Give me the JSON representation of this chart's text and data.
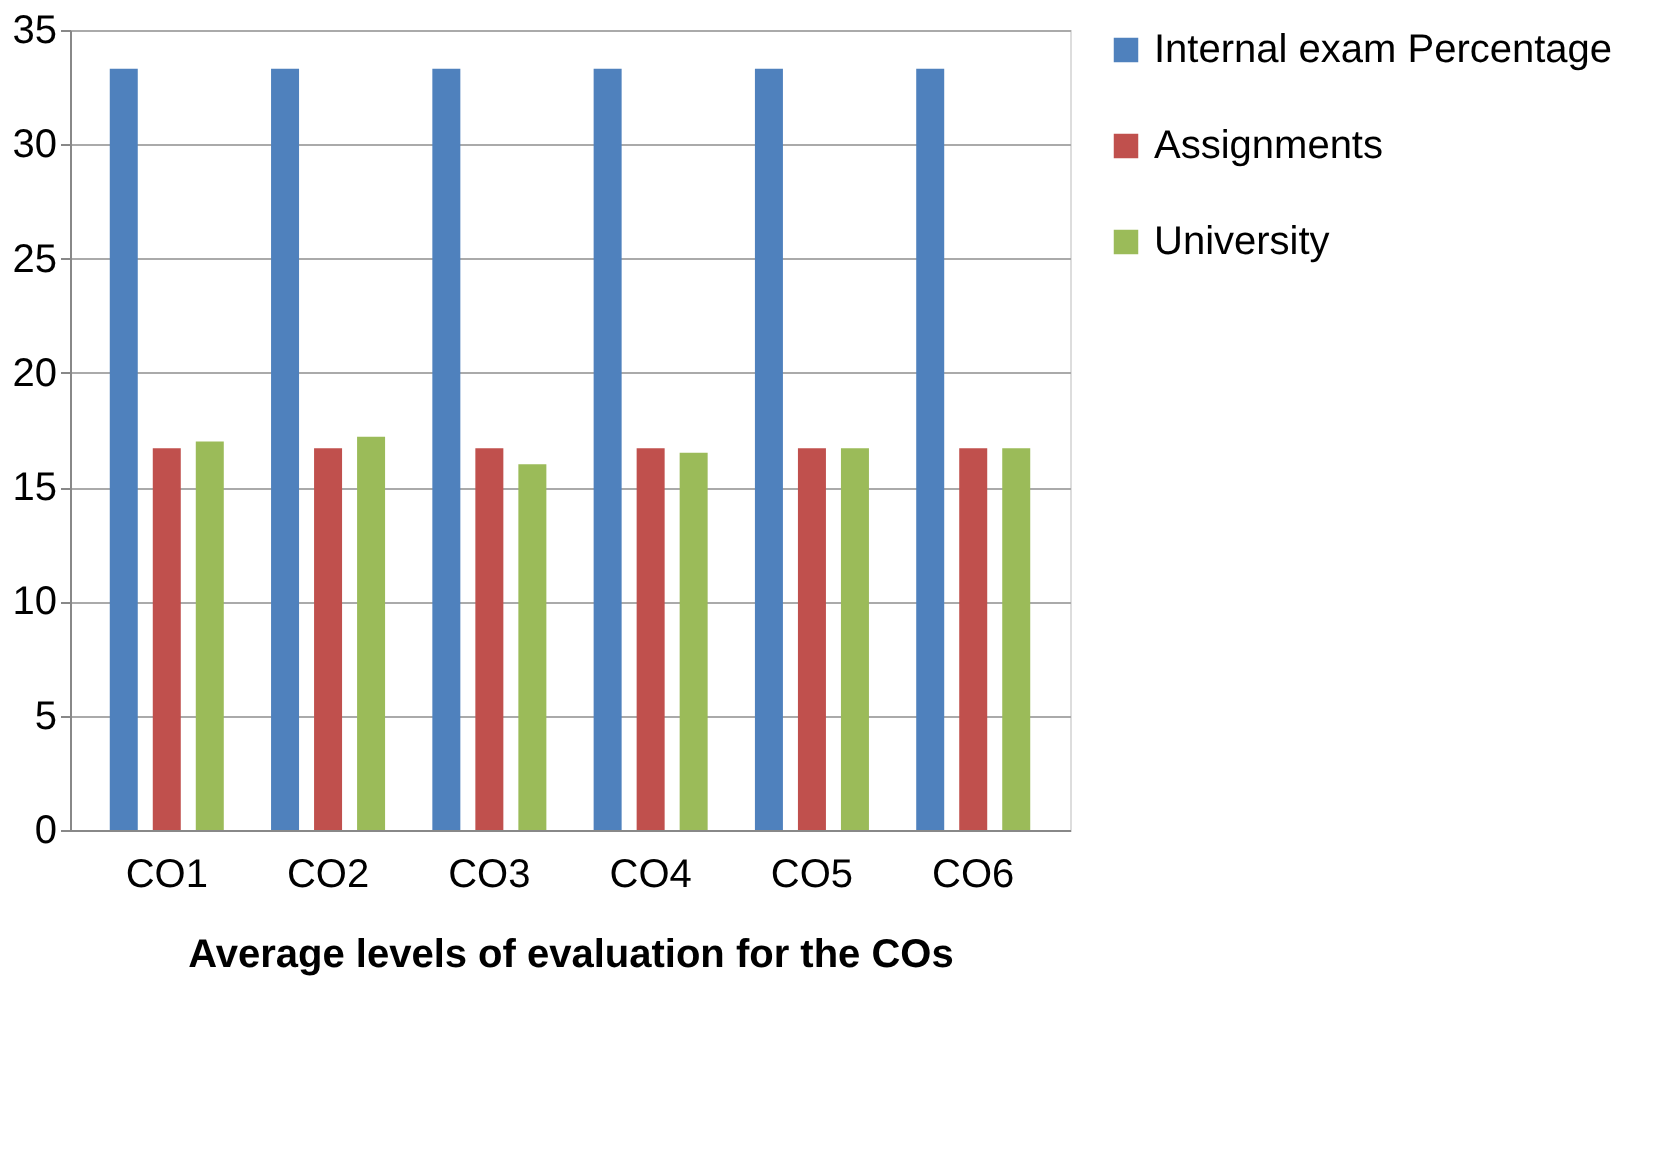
{
  "chart_data": {
    "type": "bar",
    "xlabel": "Average levels of evaluation for the COs",
    "categories": [
      "CO1",
      "CO2",
      "CO3",
      "CO4",
      "CO5",
      "CO6"
    ],
    "series": [
      {
        "name": "Internal exam Percentage",
        "color": "#4f81bd",
        "values": [
          33.3,
          33.3,
          33.3,
          33.3,
          33.3,
          33.3
        ]
      },
      {
        "name": "Assignments",
        "color": "#c0504d",
        "values": [
          16.7,
          16.7,
          16.7,
          16.7,
          16.7,
          16.7
        ]
      },
      {
        "name": "University",
        "color": "#9bbb59",
        "values": [
          17,
          17.2,
          16,
          16.5,
          16.7,
          16.7
        ]
      }
    ],
    "ylim": [
      0,
      35
    ],
    "yticks": [
      0,
      5,
      10,
      15,
      20,
      25,
      30,
      35
    ],
    "grid": "y",
    "legend": "right"
  }
}
